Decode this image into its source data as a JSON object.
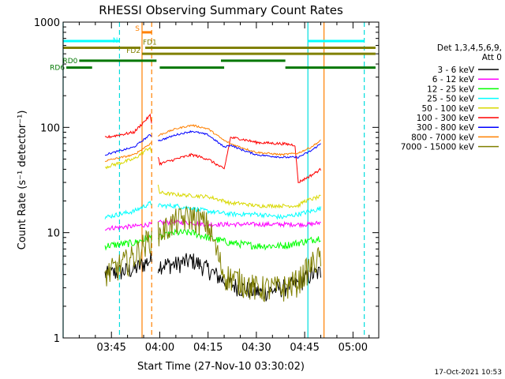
{
  "chart_data": {
    "type": "line",
    "title": "RHESSI Observing Summary Count Rates",
    "xlabel": "Start Time (27-Nov-10 03:30:02)",
    "ylabel": "Count Rate (s⁻¹ detector⁻¹)",
    "yscale": "log",
    "ylim": [
      1,
      1000
    ],
    "xlim_minutes_after_0330": [
      0,
      98
    ],
    "y_ticks": [
      {
        "value": 1,
        "label": "1"
      },
      {
        "value": 10,
        "label": "10"
      },
      {
        "value": 100,
        "label": "100"
      },
      {
        "value": 1000,
        "label": "1000"
      }
    ],
    "x_ticks": [
      {
        "t": 15,
        "label": "03:45"
      },
      {
        "t": 30,
        "label": "04:00"
      },
      {
        "t": 45,
        "label": "04:15"
      },
      {
        "t": 60,
        "label": "04:30"
      },
      {
        "t": 75,
        "label": "04:45"
      },
      {
        "t": 90,
        "label": "05:00"
      }
    ],
    "legend_header": [
      "Det 1,3,4,5,6,9,",
      "Att 0"
    ],
    "series": [
      {
        "name": "3 - 6 keV",
        "color": "#000000",
        "noise": 0.2,
        "points": [
          [
            13,
            4
          ],
          [
            22,
            4.5
          ],
          [
            27,
            5.5
          ],
          [
            30,
            5
          ],
          [
            35,
            5
          ],
          [
            40,
            5.5
          ],
          [
            45,
            4.5
          ],
          [
            50,
            3.5
          ],
          [
            55,
            3
          ],
          [
            62,
            2.7
          ],
          [
            68,
            3
          ],
          [
            73,
            3.3
          ],
          [
            77,
            4
          ],
          [
            80,
            4.2
          ]
        ]
      },
      {
        "name": "6 - 12 keV",
        "color": "#ff00ff",
        "noise": 0.05,
        "points": [
          [
            13,
            11
          ],
          [
            22,
            11.5
          ],
          [
            27,
            12
          ],
          [
            30,
            12.5
          ],
          [
            38,
            12.5
          ],
          [
            45,
            12
          ],
          [
            52,
            12
          ],
          [
            60,
            12
          ],
          [
            68,
            12
          ],
          [
            73,
            12
          ],
          [
            77,
            12
          ],
          [
            80,
            12.5
          ]
        ]
      },
      {
        "name": "12 - 25 keV",
        "color": "#00ff00",
        "noise": 0.08,
        "points": [
          [
            13,
            7.5
          ],
          [
            22,
            8
          ],
          [
            27,
            9
          ],
          [
            30,
            9
          ],
          [
            35,
            10
          ],
          [
            40,
            10
          ],
          [
            45,
            9
          ],
          [
            52,
            8
          ],
          [
            60,
            7.5
          ],
          [
            68,
            7.5
          ],
          [
            73,
            8
          ],
          [
            77,
            8.5
          ],
          [
            80,
            9
          ]
        ]
      },
      {
        "name": "25 - 50 keV",
        "color": "#00ffff",
        "noise": 0.05,
        "points": [
          [
            13,
            14
          ],
          [
            22,
            16
          ],
          [
            27,
            19
          ],
          [
            30,
            18
          ],
          [
            35,
            18
          ],
          [
            40,
            17
          ],
          [
            45,
            16
          ],
          [
            52,
            15
          ],
          [
            60,
            15
          ],
          [
            68,
            14
          ],
          [
            73,
            15
          ],
          [
            77,
            16
          ],
          [
            80,
            17
          ]
        ]
      },
      {
        "name": "50 - 100 keV",
        "color": "#d8d800",
        "noise": 0.04,
        "points": [
          [
            13,
            42
          ],
          [
            22,
            50
          ],
          [
            27,
            65
          ],
          [
            30,
            24
          ],
          [
            35,
            23
          ],
          [
            40,
            22.5
          ],
          [
            45,
            22
          ],
          [
            50,
            20
          ],
          [
            52,
            19
          ],
          [
            55,
            19
          ],
          [
            60,
            18
          ],
          [
            68,
            18
          ],
          [
            73,
            18
          ],
          [
            75,
            20
          ],
          [
            80,
            22
          ]
        ]
      },
      {
        "name": "100 - 300 keV",
        "color": "#ff0000",
        "noise": 0.03,
        "points": [
          [
            13,
            80
          ],
          [
            22,
            90
          ],
          [
            27,
            130
          ],
          [
            30,
            45
          ],
          [
            35,
            50
          ],
          [
            40,
            55
          ],
          [
            45,
            50
          ],
          [
            50,
            40
          ],
          [
            52,
            80
          ],
          [
            55,
            78
          ],
          [
            60,
            72
          ],
          [
            68,
            70
          ],
          [
            72,
            68
          ],
          [
            73,
            30
          ],
          [
            77,
            35
          ],
          [
            80,
            40
          ]
        ]
      },
      {
        "name": "300 - 800 keV",
        "color": "#0000ff",
        "noise": 0.02,
        "points": [
          [
            13,
            55
          ],
          [
            22,
            65
          ],
          [
            27,
            85
          ],
          [
            30,
            75
          ],
          [
            35,
            85
          ],
          [
            40,
            92
          ],
          [
            45,
            85
          ],
          [
            50,
            65
          ],
          [
            52,
            68
          ],
          [
            55,
            62
          ],
          [
            60,
            55
          ],
          [
            68,
            52
          ],
          [
            73,
            52
          ],
          [
            77,
            60
          ],
          [
            80,
            70
          ]
        ]
      },
      {
        "name": "800 - 7000 keV",
        "color": "#ff8000",
        "noise": 0.02,
        "points": [
          [
            13,
            48
          ],
          [
            22,
            55
          ],
          [
            27,
            70
          ],
          [
            30,
            85
          ],
          [
            35,
            97
          ],
          [
            40,
            105
          ],
          [
            45,
            97
          ],
          [
            50,
            75
          ],
          [
            52,
            70
          ],
          [
            55,
            65
          ],
          [
            60,
            58
          ],
          [
            68,
            55
          ],
          [
            73,
            57
          ],
          [
            77,
            65
          ],
          [
            80,
            75
          ]
        ]
      },
      {
        "name": "7000 - 15000 keV",
        "color": "#808000",
        "noise": 0.3,
        "points": [
          [
            13,
            4
          ],
          [
            22,
            6
          ],
          [
            27,
            9
          ],
          [
            30,
            10
          ],
          [
            35,
            13
          ],
          [
            40,
            14.5
          ],
          [
            45,
            12
          ],
          [
            50,
            4
          ],
          [
            55,
            3.5
          ],
          [
            60,
            3
          ],
          [
            68,
            3
          ],
          [
            73,
            3.5
          ],
          [
            77,
            5
          ],
          [
            80,
            6
          ]
        ]
      }
    ],
    "gaps": [
      [
        27.5,
        29.5
      ],
      [
        80.5,
        98
      ]
    ],
    "vertical_lines": [
      {
        "t": 0,
        "color": "#00dddd",
        "style": "solid"
      },
      {
        "t": 17.5,
        "color": "#00dddd",
        "style": "dashed"
      },
      {
        "t": 24.5,
        "color": "#ff8000",
        "style": "solid"
      },
      {
        "t": 27.5,
        "color": "#ff8000",
        "style": "dashed"
      },
      {
        "t": 76,
        "color": "#00dddd",
        "style": "solid"
      },
      {
        "t": 81,
        "color": "#ff8000",
        "style": "solid"
      },
      {
        "t": 93.5,
        "color": "#00dddd",
        "style": "dashed"
      }
    ],
    "state_bars": [
      {
        "label": "N",
        "color": "#00ffff",
        "y_value": 660,
        "segments": [
          [
            0,
            17.5
          ],
          [
            76,
            93.5
          ]
        ]
      },
      {
        "label": "S",
        "color": "#ff8000",
        "y_value": 800,
        "segments": [
          [
            24.5,
            27.5
          ]
        ]
      },
      {
        "label": "FD1",
        "color": "#808000",
        "y_value": 570,
        "segments": [
          [
            0,
            24
          ],
          [
            25.5,
            97
          ]
        ]
      },
      {
        "label": "FD2",
        "color": "#808000",
        "y_value": 500,
        "segments": [
          [
            24.5,
            97
          ]
        ]
      },
      {
        "label": "RD0",
        "color": "#007700",
        "y_value": 430,
        "segments": [
          [
            5,
            29
          ],
          [
            49,
            69
          ]
        ]
      },
      {
        "label": "RD6",
        "color": "#007700",
        "y_value": 370,
        "segments": [
          [
            1,
            9
          ],
          [
            30,
            50
          ],
          [
            69,
            97
          ]
        ]
      }
    ],
    "timestamp": "17-Oct-2021 10:53"
  }
}
